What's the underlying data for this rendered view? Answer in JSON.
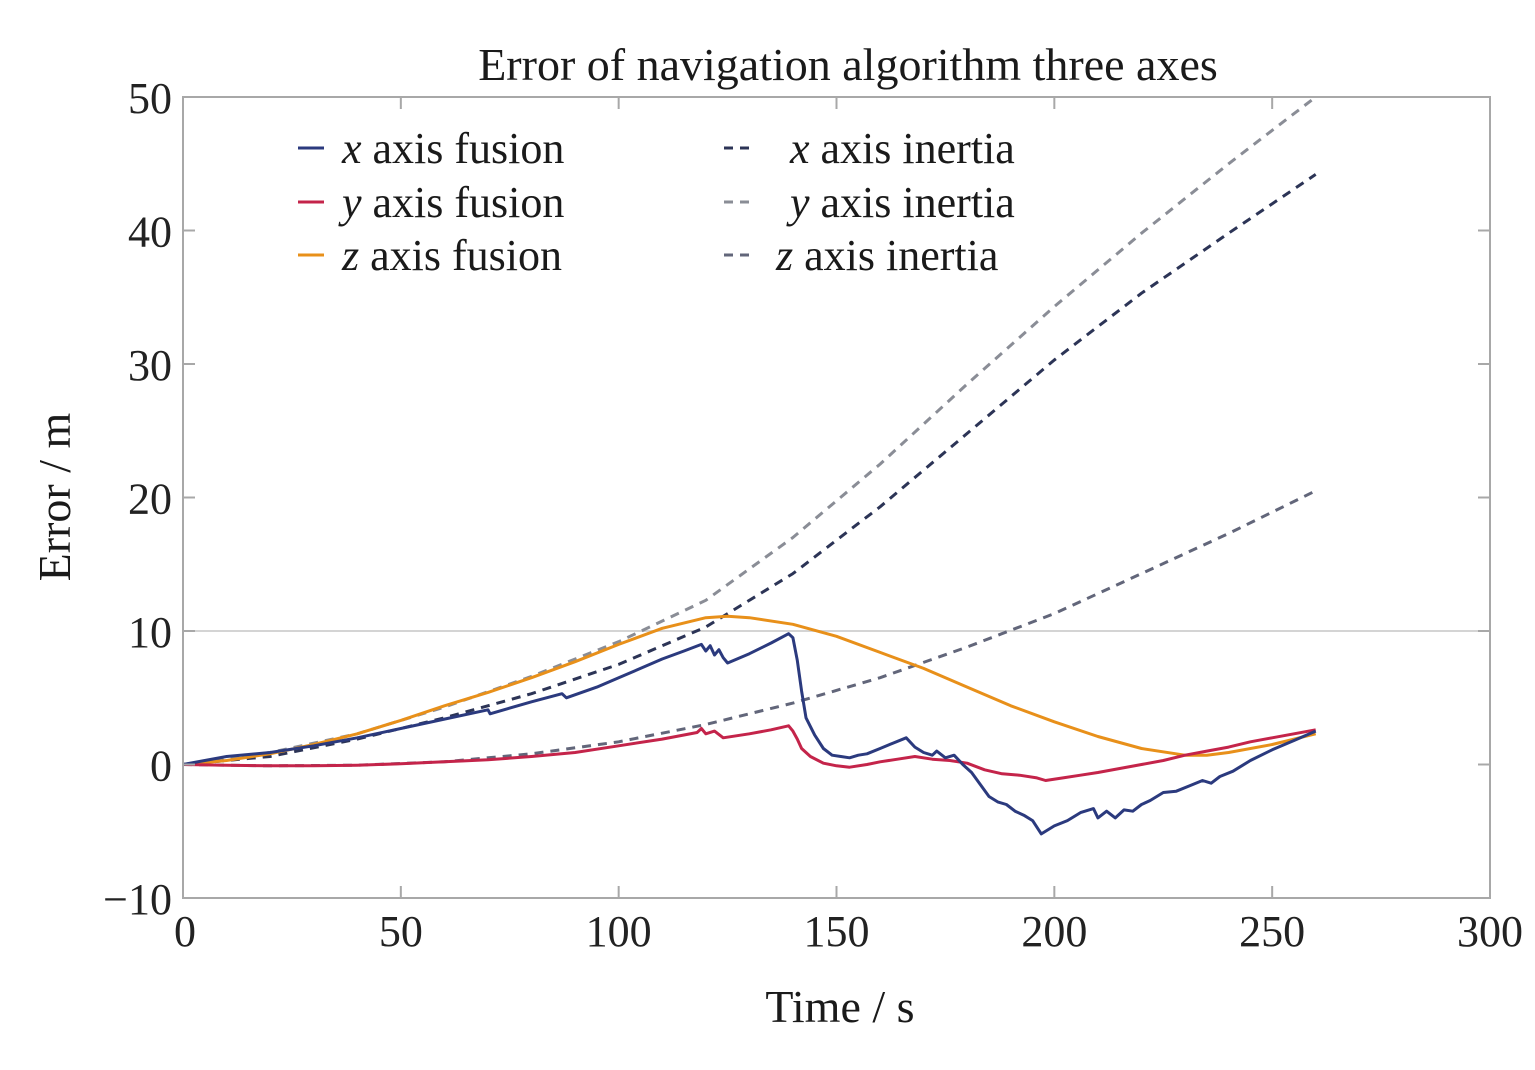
{
  "chart_data": {
    "type": "line",
    "title": "Error of navigation algorithm three axes",
    "xlabel": "Time / s",
    "ylabel": "Error / m",
    "xlim": [
      0,
      300
    ],
    "ylim": [
      -10,
      50
    ],
    "x_ticks": [
      0,
      50,
      100,
      150,
      200,
      250,
      300
    ],
    "y_ticks": [
      -10,
      0,
      10,
      20,
      30,
      40,
      50
    ],
    "x_tick_labels": [
      "0",
      "50",
      "100",
      "150",
      "200",
      "250",
      "300"
    ],
    "y_tick_labels": [
      "−10",
      "0",
      "10",
      "20",
      "30",
      "40",
      "50"
    ],
    "grid": "horizontal at 10",
    "legend_position": "top-left",
    "series": [
      {
        "name": "x axis fusion",
        "var": "x",
        "rest": "axis fusion",
        "style": "solid",
        "color": "#2b3a7e",
        "points": [
          [
            0,
            0
          ],
          [
            5,
            0.3
          ],
          [
            10,
            0.6
          ],
          [
            15,
            0.75
          ],
          [
            20,
            0.9
          ],
          [
            30,
            1.4
          ],
          [
            40,
            2.0
          ],
          [
            50,
            2.7
          ],
          [
            60,
            3.4
          ],
          [
            70,
            4.1
          ],
          [
            70.5,
            3.8
          ],
          [
            80,
            4.7
          ],
          [
            87,
            5.3
          ],
          [
            88,
            5.0
          ],
          [
            95,
            5.8
          ],
          [
            100,
            6.5
          ],
          [
            105,
            7.2
          ],
          [
            110,
            7.9
          ],
          [
            115,
            8.5
          ],
          [
            119,
            9.0
          ],
          [
            120,
            8.5
          ],
          [
            121,
            8.9
          ],
          [
            122,
            8.2
          ],
          [
            123,
            8.6
          ],
          [
            124,
            8.0
          ],
          [
            125,
            7.6
          ],
          [
            130,
            8.3
          ],
          [
            135,
            9.1
          ],
          [
            139,
            9.8
          ],
          [
            140,
            9.5
          ],
          [
            141,
            7.8
          ],
          [
            142,
            5.5
          ],
          [
            143,
            3.5
          ],
          [
            145,
            2.2
          ],
          [
            147,
            1.2
          ],
          [
            149,
            0.7
          ],
          [
            151,
            0.6
          ],
          [
            153,
            0.5
          ],
          [
            155,
            0.7
          ],
          [
            157,
            0.8
          ],
          [
            160,
            1.2
          ],
          [
            163,
            1.6
          ],
          [
            166,
            2.0
          ],
          [
            168,
            1.3
          ],
          [
            170,
            0.9
          ],
          [
            172,
            0.7
          ],
          [
            173,
            1.0
          ],
          [
            175,
            0.5
          ],
          [
            177,
            0.7
          ],
          [
            179,
            0.0
          ],
          [
            181,
            -0.6
          ],
          [
            183,
            -1.5
          ],
          [
            185,
            -2.4
          ],
          [
            187,
            -2.8
          ],
          [
            189,
            -3.0
          ],
          [
            191,
            -3.5
          ],
          [
            193,
            -3.8
          ],
          [
            195,
            -4.2
          ],
          [
            197,
            -5.2
          ],
          [
            200,
            -4.6
          ],
          [
            203,
            -4.2
          ],
          [
            206,
            -3.6
          ],
          [
            209,
            -3.3
          ],
          [
            210,
            -4.0
          ],
          [
            212,
            -3.5
          ],
          [
            214,
            -4.0
          ],
          [
            216,
            -3.4
          ],
          [
            218,
            -3.5
          ],
          [
            220,
            -3.0
          ],
          [
            222,
            -2.7
          ],
          [
            225,
            -2.1
          ],
          [
            228,
            -2.0
          ],
          [
            231,
            -1.6
          ],
          [
            234,
            -1.2
          ],
          [
            236,
            -1.4
          ],
          [
            238,
            -0.9
          ],
          [
            241,
            -0.5
          ],
          [
            245,
            0.3
          ],
          [
            250,
            1.1
          ],
          [
            255,
            1.8
          ],
          [
            260,
            2.5
          ]
        ]
      },
      {
        "name": "y axis fusion",
        "var": "y",
        "rest": "axis fusion",
        "style": "solid",
        "color": "#c4244a",
        "points": [
          [
            0,
            0
          ],
          [
            10,
            -0.05
          ],
          [
            20,
            -0.1
          ],
          [
            30,
            -0.1
          ],
          [
            40,
            -0.05
          ],
          [
            50,
            0.05
          ],
          [
            60,
            0.2
          ],
          [
            70,
            0.35
          ],
          [
            80,
            0.6
          ],
          [
            90,
            0.9
          ],
          [
            100,
            1.4
          ],
          [
            110,
            1.9
          ],
          [
            118,
            2.4
          ],
          [
            119,
            2.7
          ],
          [
            120,
            2.3
          ],
          [
            122,
            2.5
          ],
          [
            124,
            2.0
          ],
          [
            130,
            2.3
          ],
          [
            135,
            2.6
          ],
          [
            139,
            2.9
          ],
          [
            140,
            2.5
          ],
          [
            141,
            1.9
          ],
          [
            142,
            1.2
          ],
          [
            144,
            0.6
          ],
          [
            147,
            0.1
          ],
          [
            150,
            -0.1
          ],
          [
            153,
            -0.2
          ],
          [
            157,
            0.0
          ],
          [
            160,
            0.2
          ],
          [
            164,
            0.4
          ],
          [
            168,
            0.6
          ],
          [
            172,
            0.4
          ],
          [
            176,
            0.3
          ],
          [
            180,
            0.1
          ],
          [
            184,
            -0.4
          ],
          [
            188,
            -0.7
          ],
          [
            192,
            -0.8
          ],
          [
            196,
            -1.0
          ],
          [
            198,
            -1.2
          ],
          [
            202,
            -1.0
          ],
          [
            206,
            -0.8
          ],
          [
            210,
            -0.6
          ],
          [
            215,
            -0.3
          ],
          [
            220,
            0.0
          ],
          [
            225,
            0.3
          ],
          [
            230,
            0.7
          ],
          [
            235,
            1.0
          ],
          [
            240,
            1.3
          ],
          [
            245,
            1.7
          ],
          [
            250,
            2.0
          ],
          [
            255,
            2.3
          ],
          [
            260,
            2.6
          ]
        ]
      },
      {
        "name": "z axis fusion",
        "var": "z",
        "rest": "axis fusion",
        "style": "solid",
        "color": "#e8901a",
        "points": [
          [
            0,
            0
          ],
          [
            10,
            0.3
          ],
          [
            20,
            0.8
          ],
          [
            30,
            1.5
          ],
          [
            40,
            2.3
          ],
          [
            50,
            3.3
          ],
          [
            60,
            4.4
          ],
          [
            70,
            5.4
          ],
          [
            80,
            6.5
          ],
          [
            90,
            7.7
          ],
          [
            100,
            9.0
          ],
          [
            110,
            10.2
          ],
          [
            120,
            11.0
          ],
          [
            125,
            11.1
          ],
          [
            130,
            11.0
          ],
          [
            140,
            10.5
          ],
          [
            150,
            9.6
          ],
          [
            160,
            8.4
          ],
          [
            170,
            7.2
          ],
          [
            180,
            5.8
          ],
          [
            190,
            4.4
          ],
          [
            200,
            3.2
          ],
          [
            210,
            2.1
          ],
          [
            220,
            1.2
          ],
          [
            230,
            0.7
          ],
          [
            235,
            0.7
          ],
          [
            240,
            0.9
          ],
          [
            250,
            1.5
          ],
          [
            260,
            2.3
          ]
        ]
      },
      {
        "name": "x axis inertia",
        "var": "x",
        "rest": "axis inertia",
        "style": "dashed",
        "color": "#2c3456",
        "points": [
          [
            0,
            0
          ],
          [
            20,
            0.6
          ],
          [
            40,
            1.9
          ],
          [
            60,
            3.5
          ],
          [
            80,
            5.3
          ],
          [
            100,
            7.5
          ],
          [
            120,
            10.3
          ],
          [
            140,
            14.3
          ],
          [
            160,
            19.3
          ],
          [
            180,
            24.8
          ],
          [
            200,
            30.3
          ],
          [
            220,
            35.3
          ],
          [
            240,
            39.8
          ],
          [
            260,
            44.2
          ]
        ]
      },
      {
        "name": "y axis inertia",
        "var": "y",
        "rest": "axis inertia",
        "style": "dashed",
        "color": "#8a8d96",
        "points": [
          [
            0,
            0
          ],
          [
            20,
            0.9
          ],
          [
            40,
            2.3
          ],
          [
            60,
            4.3
          ],
          [
            80,
            6.6
          ],
          [
            100,
            9.2
          ],
          [
            120,
            12.3
          ],
          [
            140,
            17.0
          ],
          [
            160,
            22.5
          ],
          [
            180,
            28.5
          ],
          [
            200,
            34.3
          ],
          [
            220,
            39.8
          ],
          [
            240,
            45.0
          ],
          [
            260,
            50.0
          ]
        ]
      },
      {
        "name": "z axis inertia",
        "var": "z",
        "rest": "axis inertia",
        "style": "dashed",
        "color": "#62667a",
        "points": [
          [
            0,
            0
          ],
          [
            20,
            -0.1
          ],
          [
            40,
            -0.05
          ],
          [
            60,
            0.2
          ],
          [
            80,
            0.8
          ],
          [
            100,
            1.7
          ],
          [
            120,
            3.0
          ],
          [
            140,
            4.6
          ],
          [
            160,
            6.5
          ],
          [
            180,
            8.8
          ],
          [
            200,
            11.3
          ],
          [
            220,
            14.3
          ],
          [
            240,
            17.3
          ],
          [
            260,
            20.5
          ]
        ]
      }
    ]
  }
}
